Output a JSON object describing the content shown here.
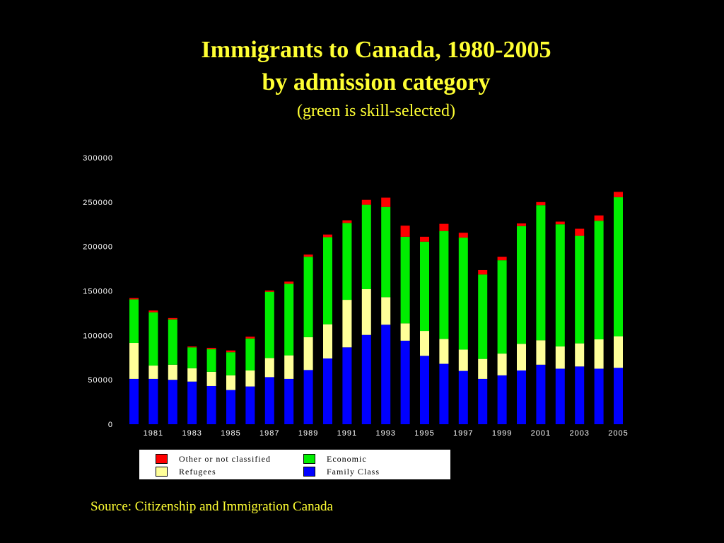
{
  "header": {
    "title_line1": "Immigrants to Canada, 1980-2005",
    "title_line2": "by admission category",
    "subtitle": "(green is skill-selected)"
  },
  "legend": {
    "items": [
      {
        "label": "Other or not classified",
        "color": "#ff0000"
      },
      {
        "label": "Economic",
        "color": "#00ee00"
      },
      {
        "label": "Refugees",
        "color": "#ffff99"
      },
      {
        "label": "Family Class",
        "color": "#0000ff"
      }
    ]
  },
  "source": "Source: Citizenship and Immigration Canada",
  "chart_data": {
    "type": "bar",
    "stacked": true,
    "categories": [
      "1980",
      "1981",
      "1982",
      "1983",
      "1984",
      "1985",
      "1986",
      "1987",
      "1988",
      "1989",
      "1990",
      "1991",
      "1992",
      "1993",
      "1994",
      "1995",
      "1996",
      "1997",
      "1998",
      "1999",
      "2000",
      "2001",
      "2002",
      "2003",
      "2004",
      "2005"
    ],
    "x_tick_labels": [
      "1981",
      "1983",
      "1985",
      "1987",
      "1989",
      "1991",
      "1993",
      "1995",
      "1997",
      "1999",
      "2001",
      "2003",
      "2005"
    ],
    "ylim": [
      0,
      300000
    ],
    "y_ticks": [
      0,
      50000,
      100000,
      150000,
      200000,
      250000,
      300000
    ],
    "y_tick_labels": [
      "0",
      "50000",
      "100000",
      "150000",
      "200000",
      "250000",
      "300000"
    ],
    "colors": {
      "family": "#0000ff",
      "refugees": "#ffff99",
      "economic": "#00ee00",
      "other": "#ff0000"
    },
    "series": [
      {
        "name": "Family Class",
        "key": "family",
        "values": [
          51000,
          51000,
          50000,
          48000,
          43000,
          38500,
          42500,
          53000,
          51000,
          61000,
          74000,
          86500,
          100500,
          112000,
          94000,
          77000,
          68000,
          60000,
          51000,
          55000,
          60500,
          67000,
          62500,
          65000,
          62500,
          63500
        ]
      },
      {
        "name": "Refugees",
        "key": "refugees",
        "values": [
          40500,
          15000,
          17000,
          15000,
          16000,
          16500,
          18000,
          21500,
          26500,
          37000,
          38500,
          53500,
          51500,
          31000,
          19500,
          28000,
          28000,
          24000,
          22500,
          24500,
          30000,
          27500,
          25000,
          26000,
          33000,
          35500
        ]
      },
      {
        "name": "Economic",
        "key": "economic",
        "values": [
          49000,
          60000,
          51000,
          23500,
          25500,
          26000,
          36000,
          74500,
          80500,
          90500,
          98000,
          86500,
          95000,
          101500,
          97500,
          100500,
          121500,
          126000,
          95000,
          105000,
          132500,
          152000,
          137500,
          121000,
          133500,
          156500
        ]
      },
      {
        "name": "Other or not classified",
        "key": "other",
        "values": [
          1500,
          2000,
          1500,
          1000,
          1500,
          2000,
          2000,
          1500,
          2500,
          2500,
          3000,
          3000,
          5500,
          10500,
          12500,
          5500,
          8000,
          5500,
          5000,
          4000,
          3000,
          3500,
          3000,
          8000,
          6000,
          6000
        ]
      }
    ],
    "grid": false,
    "legend_position": "bottom"
  }
}
